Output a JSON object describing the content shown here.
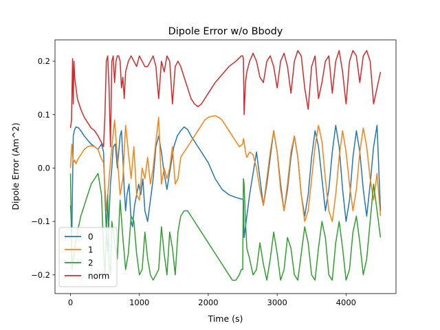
{
  "chart_data": {
    "type": "line",
    "title": "Dipole Error w/o Bbody",
    "xlabel": "Time (s)",
    "ylabel": "Dipole Error (Am^2)",
    "xlim": [
      -225,
      4725
    ],
    "ylim": [
      -0.235,
      0.24
    ],
    "xticks": [
      0,
      1000,
      2000,
      3000,
      4000
    ],
    "xtick_labels": [
      "0",
      "1000",
      "2000",
      "3000",
      "4000"
    ],
    "yticks": [
      -0.2,
      -0.1,
      0.0,
      0.1,
      0.2
    ],
    "ytick_labels": [
      "−0.2",
      "−0.1",
      "0.0",
      "0.1",
      "0.2"
    ],
    "grid": false,
    "legend_position": "lower-left",
    "series": [
      {
        "name": "0",
        "color": "#1f77b4",
        "x": [
          0,
          20,
          40,
          60,
          80,
          120,
          160,
          200,
          250,
          300,
          350,
          400,
          450,
          480,
          500,
          520,
          540,
          560,
          580,
          600,
          620,
          650,
          680,
          700,
          720,
          740,
          760,
          780,
          800,
          820,
          850,
          880,
          900,
          930,
          960,
          990,
          1020,
          1050,
          1080,
          1120,
          1160,
          1200,
          1240,
          1280,
          1320,
          1360,
          1400,
          1450,
          1500,
          1550,
          1600,
          1650,
          1700,
          1750,
          1800,
          1900,
          2000,
          2100,
          2200,
          2300,
          2400,
          2480,
          2500,
          2510,
          2520,
          2530,
          2560,
          2600,
          2650,
          2700,
          2750,
          2800,
          2850,
          2900,
          2950,
          3000,
          3050,
          3100,
          3150,
          3200,
          3250,
          3300,
          3350,
          3400,
          3450,
          3500,
          3550,
          3600,
          3650,
          3700,
          3750,
          3800,
          3850,
          3900,
          3950,
          4000,
          4050,
          4100,
          4150,
          4200,
          4250,
          4300,
          4350,
          4400,
          4450,
          4500
        ],
        "y": [
          -0.07,
          -0.12,
          0.06,
          0.072,
          0.077,
          0.075,
          0.068,
          0.06,
          0.052,
          0.045,
          0.04,
          0.035,
          0.045,
          0.03,
          -0.05,
          -0.12,
          -0.155,
          -0.09,
          -0.03,
          0.0,
          0.04,
          0.045,
          0.0,
          0.03,
          0.06,
          0.07,
          0.02,
          -0.04,
          -0.08,
          -0.05,
          -0.03,
          -0.1,
          -0.11,
          -0.07,
          -0.05,
          -0.03,
          -0.05,
          -0.02,
          -0.08,
          -0.1,
          -0.06,
          -0.02,
          0.04,
          0.06,
          0.03,
          -0.01,
          -0.04,
          0.0,
          0.04,
          0.06,
          0.07,
          0.077,
          0.072,
          0.06,
          0.05,
          0.03,
          0.01,
          -0.02,
          -0.04,
          -0.05,
          -0.055,
          -0.058,
          -0.058,
          -0.06,
          -0.13,
          -0.12,
          -0.09,
          -0.05,
          -0.01,
          0.03,
          -0.02,
          -0.07,
          -0.03,
          0.02,
          0.07,
          0.03,
          -0.03,
          -0.08,
          -0.04,
          0.02,
          0.06,
          0.02,
          -0.05,
          -0.09,
          -0.05,
          0.02,
          0.07,
          0.04,
          -0.02,
          -0.08,
          -0.04,
          0.03,
          0.08,
          0.04,
          -0.04,
          -0.1,
          -0.06,
          0.02,
          0.07,
          0.03,
          -0.04,
          -0.09,
          -0.03,
          0.04,
          0.08,
          -0.08
        ]
      },
      {
        "name": "1",
        "color": "#ff7f0e",
        "x": [
          0,
          20,
          40,
          60,
          80,
          100,
          150,
          200,
          250,
          300,
          350,
          400,
          440,
          480,
          520,
          560,
          600,
          640,
          680,
          720,
          760,
          800,
          840,
          880,
          920,
          960,
          1000,
          1040,
          1080,
          1120,
          1160,
          1200,
          1240,
          1280,
          1300,
          1320,
          1360,
          1400,
          1440,
          1480,
          1520,
          1560,
          1600,
          1650,
          1700,
          1750,
          1800,
          1850,
          1900,
          1950,
          2000,
          2050,
          2100,
          2150,
          2200,
          2250,
          2300,
          2350,
          2400,
          2450,
          2500,
          2510,
          2520,
          2540,
          2560,
          2600,
          2650,
          2700,
          2750,
          2800,
          2850,
          2900,
          2950,
          3000,
          3050,
          3100,
          3150,
          3200,
          3250,
          3300,
          3350,
          3400,
          3450,
          3500,
          3550,
          3600,
          3650,
          3700,
          3750,
          3800,
          3850,
          3900,
          3950,
          4000,
          4050,
          4100,
          4150,
          4200,
          4250,
          4300,
          4350,
          4400,
          4450,
          4500
        ],
        "y": [
          0.0,
          0.045,
          0.01,
          0.015,
          0.008,
          0.015,
          0.025,
          0.035,
          0.04,
          0.042,
          0.04,
          0.035,
          0.02,
          0.01,
          -0.08,
          -0.02,
          0.04,
          0.09,
          0.02,
          -0.05,
          -0.02,
          0.08,
          0.03,
          -0.02,
          0.04,
          -0.05,
          -0.06,
          0.0,
          -0.02,
          0.02,
          -0.03,
          0.0,
          0.05,
          0.095,
          0.03,
          -0.03,
          0.0,
          -0.02,
          0.0,
          0.04,
          -0.03,
          -0.02,
          0.02,
          0.03,
          0.04,
          0.05,
          0.06,
          0.07,
          0.08,
          0.09,
          0.095,
          0.097,
          0.098,
          0.095,
          0.09,
          0.08,
          0.07,
          0.06,
          0.05,
          0.04,
          0.045,
          0.055,
          0.05,
          0.03,
          0.02,
          0.03,
          0.025,
          0.0,
          -0.04,
          -0.07,
          -0.02,
          0.03,
          0.07,
          0.03,
          -0.04,
          -0.08,
          -0.03,
          0.03,
          0.06,
          0.02,
          -0.05,
          -0.1,
          -0.08,
          -0.02,
          0.04,
          0.08,
          0.05,
          -0.02,
          -0.08,
          -0.1,
          -0.05,
          0.02,
          0.07,
          0.03,
          -0.03,
          -0.08,
          -0.04,
          0.03,
          0.075,
          0.04,
          -0.02,
          -0.06,
          -0.01,
          -0.09
        ]
      },
      {
        "name": "2",
        "color": "#2ca02c",
        "x": [
          0,
          20,
          40,
          60,
          100,
          150,
          200,
          250,
          300,
          350,
          400,
          450,
          480,
          500,
          520,
          540,
          560,
          580,
          600,
          640,
          680,
          720,
          760,
          800,
          840,
          880,
          920,
          960,
          1000,
          1040,
          1080,
          1120,
          1160,
          1200,
          1240,
          1280,
          1320,
          1360,
          1400,
          1440,
          1480,
          1520,
          1560,
          1600,
          1650,
          1700,
          1750,
          1800,
          1850,
          1900,
          1950,
          2000,
          2050,
          2100,
          2150,
          2200,
          2250,
          2300,
          2350,
          2400,
          2450,
          2480,
          2500,
          2510,
          2520,
          2540,
          2560,
          2600,
          2650,
          2700,
          2750,
          2800,
          2850,
          2900,
          2950,
          3000,
          3050,
          3100,
          3150,
          3200,
          3250,
          3300,
          3350,
          3400,
          3450,
          3500,
          3550,
          3600,
          3650,
          3700,
          3750,
          3800,
          3850,
          3900,
          3950,
          4000,
          4050,
          4100,
          4150,
          4200,
          4250,
          4300,
          4350,
          4400,
          4450,
          4500
        ],
        "y": [
          -0.01,
          -0.19,
          -0.17,
          -0.15,
          -0.12,
          -0.09,
          -0.07,
          -0.05,
          -0.03,
          -0.02,
          -0.01,
          -0.05,
          -0.15,
          -0.2,
          -0.12,
          -0.05,
          -0.18,
          -0.2,
          -0.1,
          -0.14,
          -0.17,
          -0.06,
          -0.13,
          -0.19,
          -0.16,
          -0.09,
          -0.1,
          -0.16,
          -0.2,
          -0.19,
          -0.12,
          -0.17,
          -0.2,
          -0.21,
          -0.2,
          -0.19,
          -0.11,
          -0.16,
          -0.2,
          -0.12,
          -0.15,
          -0.2,
          -0.12,
          -0.09,
          -0.08,
          -0.08,
          -0.09,
          -0.1,
          -0.11,
          -0.12,
          -0.13,
          -0.14,
          -0.15,
          -0.16,
          -0.17,
          -0.18,
          -0.19,
          -0.2,
          -0.21,
          -0.21,
          -0.2,
          -0.19,
          -0.19,
          -0.02,
          -0.03,
          -0.1,
          -0.15,
          -0.17,
          -0.2,
          -0.19,
          -0.14,
          -0.18,
          -0.21,
          -0.17,
          -0.12,
          -0.16,
          -0.21,
          -0.19,
          -0.13,
          -0.15,
          -0.2,
          -0.21,
          -0.16,
          -0.11,
          -0.14,
          -0.2,
          -0.21,
          -0.15,
          -0.1,
          -0.13,
          -0.2,
          -0.21,
          -0.14,
          -0.1,
          -0.15,
          -0.21,
          -0.19,
          -0.12,
          -0.09,
          -0.14,
          -0.2,
          -0.17,
          -0.1,
          -0.03,
          -0.08,
          -0.13
        ]
      },
      {
        "name": "norm",
        "color": "#d62728",
        "x": [
          0,
          15,
          30,
          40,
          50,
          60,
          100,
          150,
          200,
          250,
          300,
          350,
          400,
          440,
          480,
          500,
          520,
          540,
          560,
          580,
          600,
          620,
          640,
          660,
          680,
          700,
          720,
          740,
          760,
          780,
          800,
          840,
          880,
          920,
          960,
          1000,
          1040,
          1080,
          1120,
          1160,
          1200,
          1240,
          1280,
          1320,
          1360,
          1400,
          1440,
          1480,
          1520,
          1560,
          1600,
          1650,
          1700,
          1750,
          1800,
          1850,
          1900,
          1950,
          2000,
          2100,
          2200,
          2300,
          2400,
          2480,
          2500,
          2510,
          2520,
          2540,
          2560,
          2600,
          2650,
          2700,
          2750,
          2800,
          2850,
          2900,
          2950,
          3000,
          3050,
          3100,
          3150,
          3200,
          3250,
          3300,
          3350,
          3400,
          3450,
          3500,
          3550,
          3600,
          3650,
          3700,
          3750,
          3800,
          3850,
          3900,
          3950,
          4000,
          4050,
          4100,
          4150,
          4200,
          4250,
          4300,
          4350,
          4400,
          4450,
          4500
        ],
        "y": [
          0.075,
          0.09,
          0.205,
          0.12,
          0.2,
          0.17,
          0.13,
          0.11,
          0.095,
          0.085,
          0.075,
          0.07,
          0.06,
          0.05,
          0.04,
          0.1,
          0.2,
          0.21,
          0.15,
          0.04,
          0.2,
          0.21,
          0.16,
          0.2,
          0.21,
          0.21,
          0.2,
          0.15,
          0.17,
          0.13,
          0.18,
          0.2,
          0.21,
          0.2,
          0.19,
          0.21,
          0.2,
          0.19,
          0.19,
          0.2,
          0.21,
          0.19,
          0.13,
          0.2,
          0.18,
          0.21,
          0.2,
          0.12,
          0.19,
          0.2,
          0.19,
          0.17,
          0.15,
          0.13,
          0.12,
          0.115,
          0.12,
          0.13,
          0.14,
          0.16,
          0.175,
          0.19,
          0.2,
          0.21,
          0.21,
          0.205,
          0.1,
          0.16,
          0.18,
          0.2,
          0.215,
          0.2,
          0.17,
          0.16,
          0.2,
          0.21,
          0.19,
          0.15,
          0.2,
          0.215,
          0.19,
          0.14,
          0.2,
          0.22,
          0.21,
          0.15,
          0.11,
          0.19,
          0.21,
          0.13,
          0.16,
          0.2,
          0.21,
          0.14,
          0.2,
          0.22,
          0.18,
          0.12,
          0.2,
          0.22,
          0.21,
          0.16,
          0.21,
          0.22,
          0.2,
          0.12,
          0.15,
          0.18
        ]
      }
    ]
  }
}
